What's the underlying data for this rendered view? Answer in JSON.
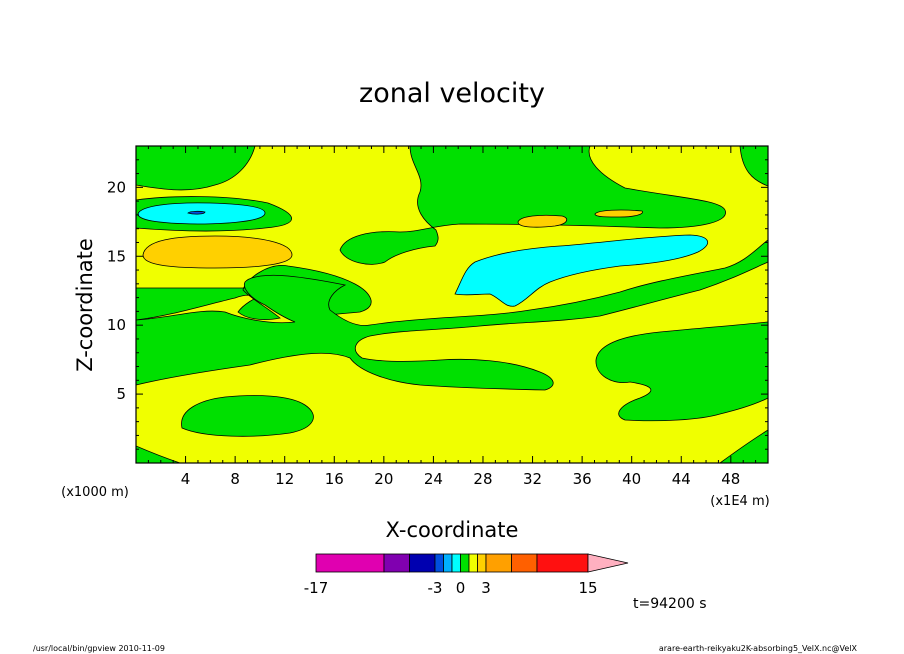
{
  "chart_data": {
    "type": "contour",
    "title": "zonal velocity",
    "xlabel": "X-coordinate",
    "ylabel": "Z-coordinate",
    "x_unit_label": "(x1E4 m)",
    "y_unit_label": "(x1000 m)",
    "xlim": [
      0,
      51
    ],
    "ylim": [
      0,
      23
    ],
    "x_ticks": [
      "4",
      "8",
      "12",
      "16",
      "20",
      "24",
      "28",
      "32",
      "36",
      "40",
      "44",
      "48"
    ],
    "y_ticks": [
      "5",
      "10",
      "15",
      "20"
    ],
    "grid": false,
    "colorbar": {
      "levels": [
        -17,
        -9,
        -6,
        -3,
        -2,
        -1,
        0,
        1,
        2,
        3,
        6,
        9,
        15
      ],
      "tick_labels": [
        "-17",
        "-3",
        "0",
        "3",
        "15"
      ],
      "tick_values": [
        -17,
        -3,
        0,
        3,
        15
      ],
      "colors": [
        "#e000b0",
        "#8000b0",
        "#0000b0",
        "#0050e0",
        "#00b0ff",
        "#00ffff",
        "#00e000",
        "#f0ff00",
        "#ffd000",
        "#ffa000",
        "#ff6000",
        "#ff1010",
        "#ff8080"
      ],
      "extend_color": "#ffb0c0"
    },
    "field_description_regions": [
      {
        "sign": "negative",
        "center": [
          5,
          18
        ],
        "value_range": [
          -3,
          -2
        ]
      },
      {
        "sign": "negative",
        "center": [
          30,
          14
        ],
        "value_range": [
          -3,
          -1
        ]
      },
      {
        "sign": "positive",
        "center": [
          6,
          15
        ],
        "value_range": [
          2,
          3
        ]
      },
      {
        "sign": "positive",
        "center": [
          33,
          17.5
        ],
        "value_range": [
          1,
          2
        ]
      },
      {
        "sign": "positive",
        "center": [
          40,
          18
        ],
        "value_range": [
          1,
          2
        ]
      }
    ],
    "time_label": "t=94200 s"
  },
  "footer": {
    "left": "/usr/local/bin/gpview  2010-11-09",
    "right": "arare-earth-reikyaku2K-absorbing5_VelX.nc@VelX"
  }
}
